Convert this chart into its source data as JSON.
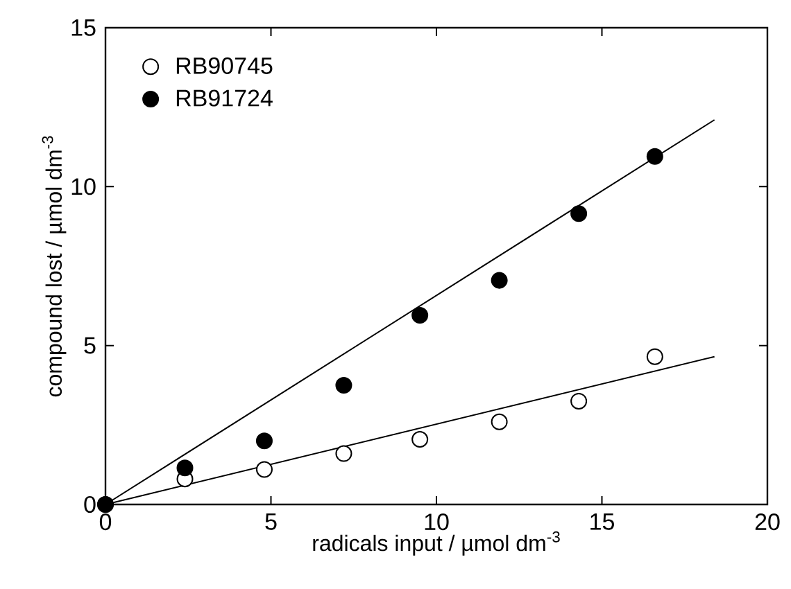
{
  "chart_data": {
    "type": "scatter",
    "xlabel": "radicals input / µmol dm$^{-3}$",
    "ylabel": "compound lost / µmol dm$^{-3}$",
    "xlim": [
      0,
      20
    ],
    "ylim": [
      0,
      15
    ],
    "xticks": [
      0,
      5,
      10,
      15,
      20
    ],
    "yticks": [
      0,
      5,
      10,
      15
    ],
    "legend": "top left",
    "grid": false,
    "series": [
      {
        "name": "RB90745",
        "marker": "circle",
        "color": "#ffffff",
        "x": [
          0,
          2.4,
          4.8,
          7.2,
          9.5,
          11.9,
          14.3,
          16.6
        ],
        "values": [
          0,
          0.8,
          1.1,
          1.6,
          2.05,
          2.6,
          3.25,
          4.65
        ]
      },
      {
        "name": "RB91724",
        "marker": "circle",
        "color": "#000000",
        "x": [
          0,
          2.4,
          4.8,
          7.2,
          9.5,
          11.9,
          14.3,
          16.6
        ],
        "values": [
          0,
          1.15,
          2.0,
          3.75,
          5.95,
          7.05,
          9.15,
          10.95
        ]
      },
      {
        "type": "line",
        "marker": "none",
        "color": "#000000",
        "x": [
          0,
          18.4
        ],
        "values": [
          0,
          12.1
        ]
      },
      {
        "type": "line",
        "marker": "none",
        "color": "#000000",
        "x": [
          0,
          18.4
        ],
        "values": [
          0,
          4.65
        ]
      }
    ]
  }
}
